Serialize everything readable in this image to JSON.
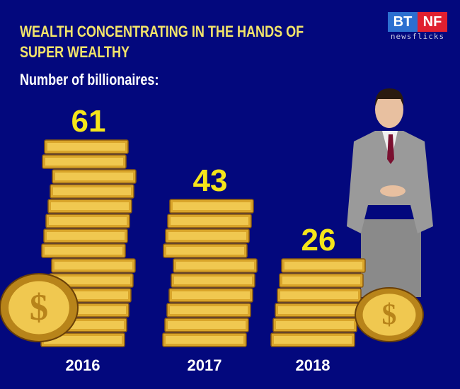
{
  "header": {
    "title": "WEALTH CONCENTRATING IN THE HANDS OF SUPER WEALTHY",
    "subtitle": "Number of billionaires:"
  },
  "logo": {
    "left": "BT",
    "right": "NF",
    "tagline": "newsflicks"
  },
  "colors": {
    "background": "#03087d",
    "title": "#f2e46a",
    "value": "#f5e51a",
    "coin": "#d9a52a"
  },
  "chart_data": {
    "type": "bar",
    "title": "Number of billionaires:",
    "categories": [
      "2016",
      "2017",
      "2018"
    ],
    "values": [
      61,
      43,
      26
    ],
    "xlabel": "",
    "ylabel": "",
    "grid": false
  }
}
